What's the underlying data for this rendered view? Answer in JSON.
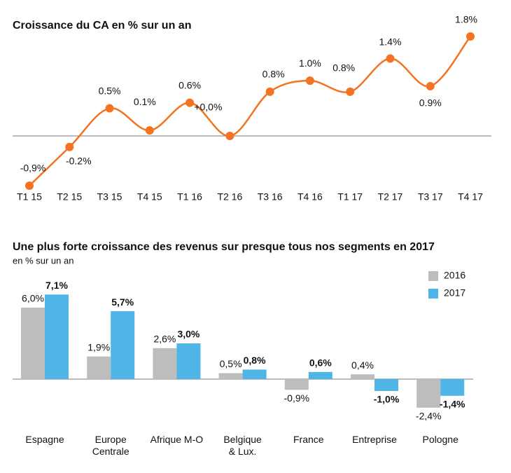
{
  "chart_data": [
    {
      "type": "line",
      "title": "Croissance du CA en % sur un an",
      "categories": [
        "T1 15",
        "T2 15",
        "T3 15",
        "T4 15",
        "T1 16",
        "T2 16",
        "T3 16",
        "T4 16",
        "T1 17",
        "T2 17",
        "T3 17",
        "T4 17"
      ],
      "values": [
        -0.9,
        -0.2,
        0.5,
        0.1,
        0.6,
        0.0,
        0.8,
        1.0,
        0.8,
        1.4,
        0.9,
        1.8
      ],
      "value_labels": [
        "-0,9%",
        "-0.2%",
        "0.5%",
        "0.1%",
        "0.6%",
        "+0,0%",
        "0.8%",
        "1.0%",
        "0.8%",
        "1.4%",
        "0.9%",
        "1.8%"
      ],
      "color": "#f37321"
    },
    {
      "type": "bar",
      "title": "Une plus forte croissance des revenus sur presque tous nos segments en 2017",
      "subtitle": "en % sur un an",
      "categories": [
        "Espagne",
        "Europe\nCentrale",
        "Afrique M-O",
        "Belgique\n& Lux.",
        "France",
        "Entreprise",
        "Pologne"
      ],
      "series": [
        {
          "name": "2016",
          "color": "#bdbdbd",
          "values": [
            6.0,
            1.9,
            2.6,
            0.5,
            -0.9,
            0.4,
            -2.4
          ],
          "value_labels": [
            "6,0%",
            "1,9%",
            "2,6%",
            "0,5%",
            "-0,9%",
            "0,4%",
            "-2,4%"
          ]
        },
        {
          "name": "2017",
          "color": "#4fb4e6",
          "values": [
            7.1,
            5.7,
            3.0,
            0.8,
            0.6,
            -1.0,
            -1.4
          ],
          "value_labels": [
            "7,1%",
            "5,7%",
            "3,0%",
            "0,8%",
            "0,6%",
            "-1,0%",
            "-1,4%"
          ]
        }
      ],
      "legend": "top-right"
    }
  ]
}
